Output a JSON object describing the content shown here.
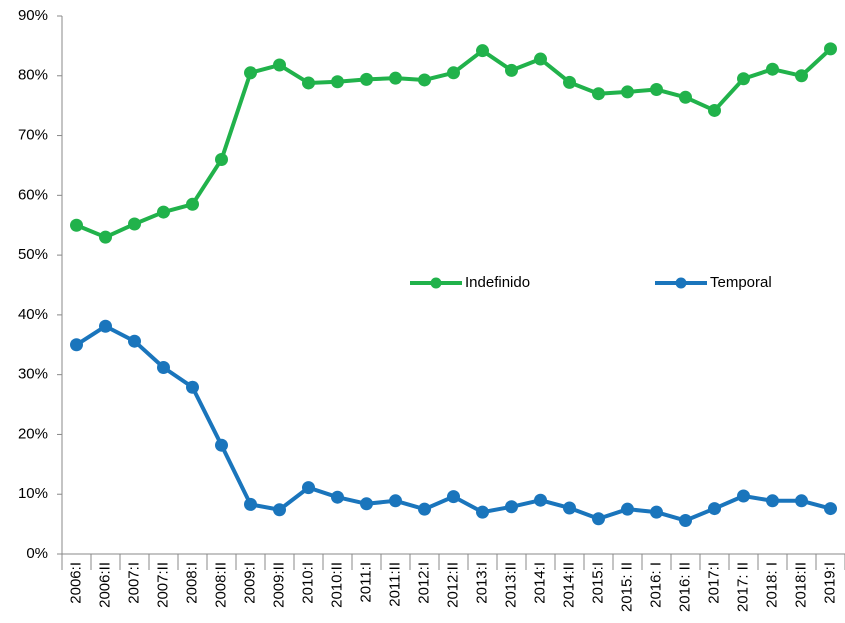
{
  "chart_data": {
    "type": "line",
    "categories": [
      "2006:I",
      "2006:II",
      "2007:I",
      "2007:II",
      "2008:I",
      "2008:II",
      "2009:I",
      "2009:II",
      "2010:I",
      "2010:II",
      "2011:I",
      "2011:II",
      "2012:I",
      "2012:II",
      "2013:I",
      "2013:II",
      "2014:I",
      "2014:II",
      "2015:I",
      "2015: II",
      "2016: I",
      "2016: II",
      "2017:I",
      "2017: II",
      "2018: I",
      "2018:II",
      "2019:I"
    ],
    "series": [
      {
        "name": "Indefinido",
        "color": "#21b24b",
        "values": [
          55.0,
          53.0,
          55.2,
          57.2,
          58.5,
          66.0,
          80.5,
          81.8,
          78.8,
          79.0,
          79.4,
          79.6,
          79.3,
          80.5,
          84.2,
          80.9,
          82.8,
          78.9,
          77.0,
          77.3,
          77.7,
          76.4,
          74.2,
          79.5,
          81.1,
          80.0,
          84.5
        ]
      },
      {
        "name": "Temporal",
        "color": "#1a75bc",
        "values": [
          35.0,
          38.1,
          35.6,
          31.2,
          27.9,
          18.2,
          8.3,
          7.4,
          11.1,
          9.5,
          8.4,
          8.9,
          7.5,
          9.6,
          7.0,
          7.9,
          9.0,
          7.7,
          5.9,
          7.5,
          7.0,
          5.6,
          7.6,
          9.7,
          8.9,
          8.9,
          7.6
        ]
      }
    ],
    "ylim": [
      0,
      90
    ],
    "yticks": [
      {
        "value": 0,
        "label": "0%"
      },
      {
        "value": 10,
        "label": "10%"
      },
      {
        "value": 20,
        "label": "20%"
      },
      {
        "value": 30,
        "label": "30%"
      },
      {
        "value": 40,
        "label": "40%"
      },
      {
        "value": 50,
        "label": "50%"
      },
      {
        "value": 60,
        "label": "60%"
      },
      {
        "value": 70,
        "label": "70%"
      },
      {
        "value": 80,
        "label": "80%"
      },
      {
        "value": 90,
        "label": "90%"
      }
    ],
    "grid": false
  }
}
